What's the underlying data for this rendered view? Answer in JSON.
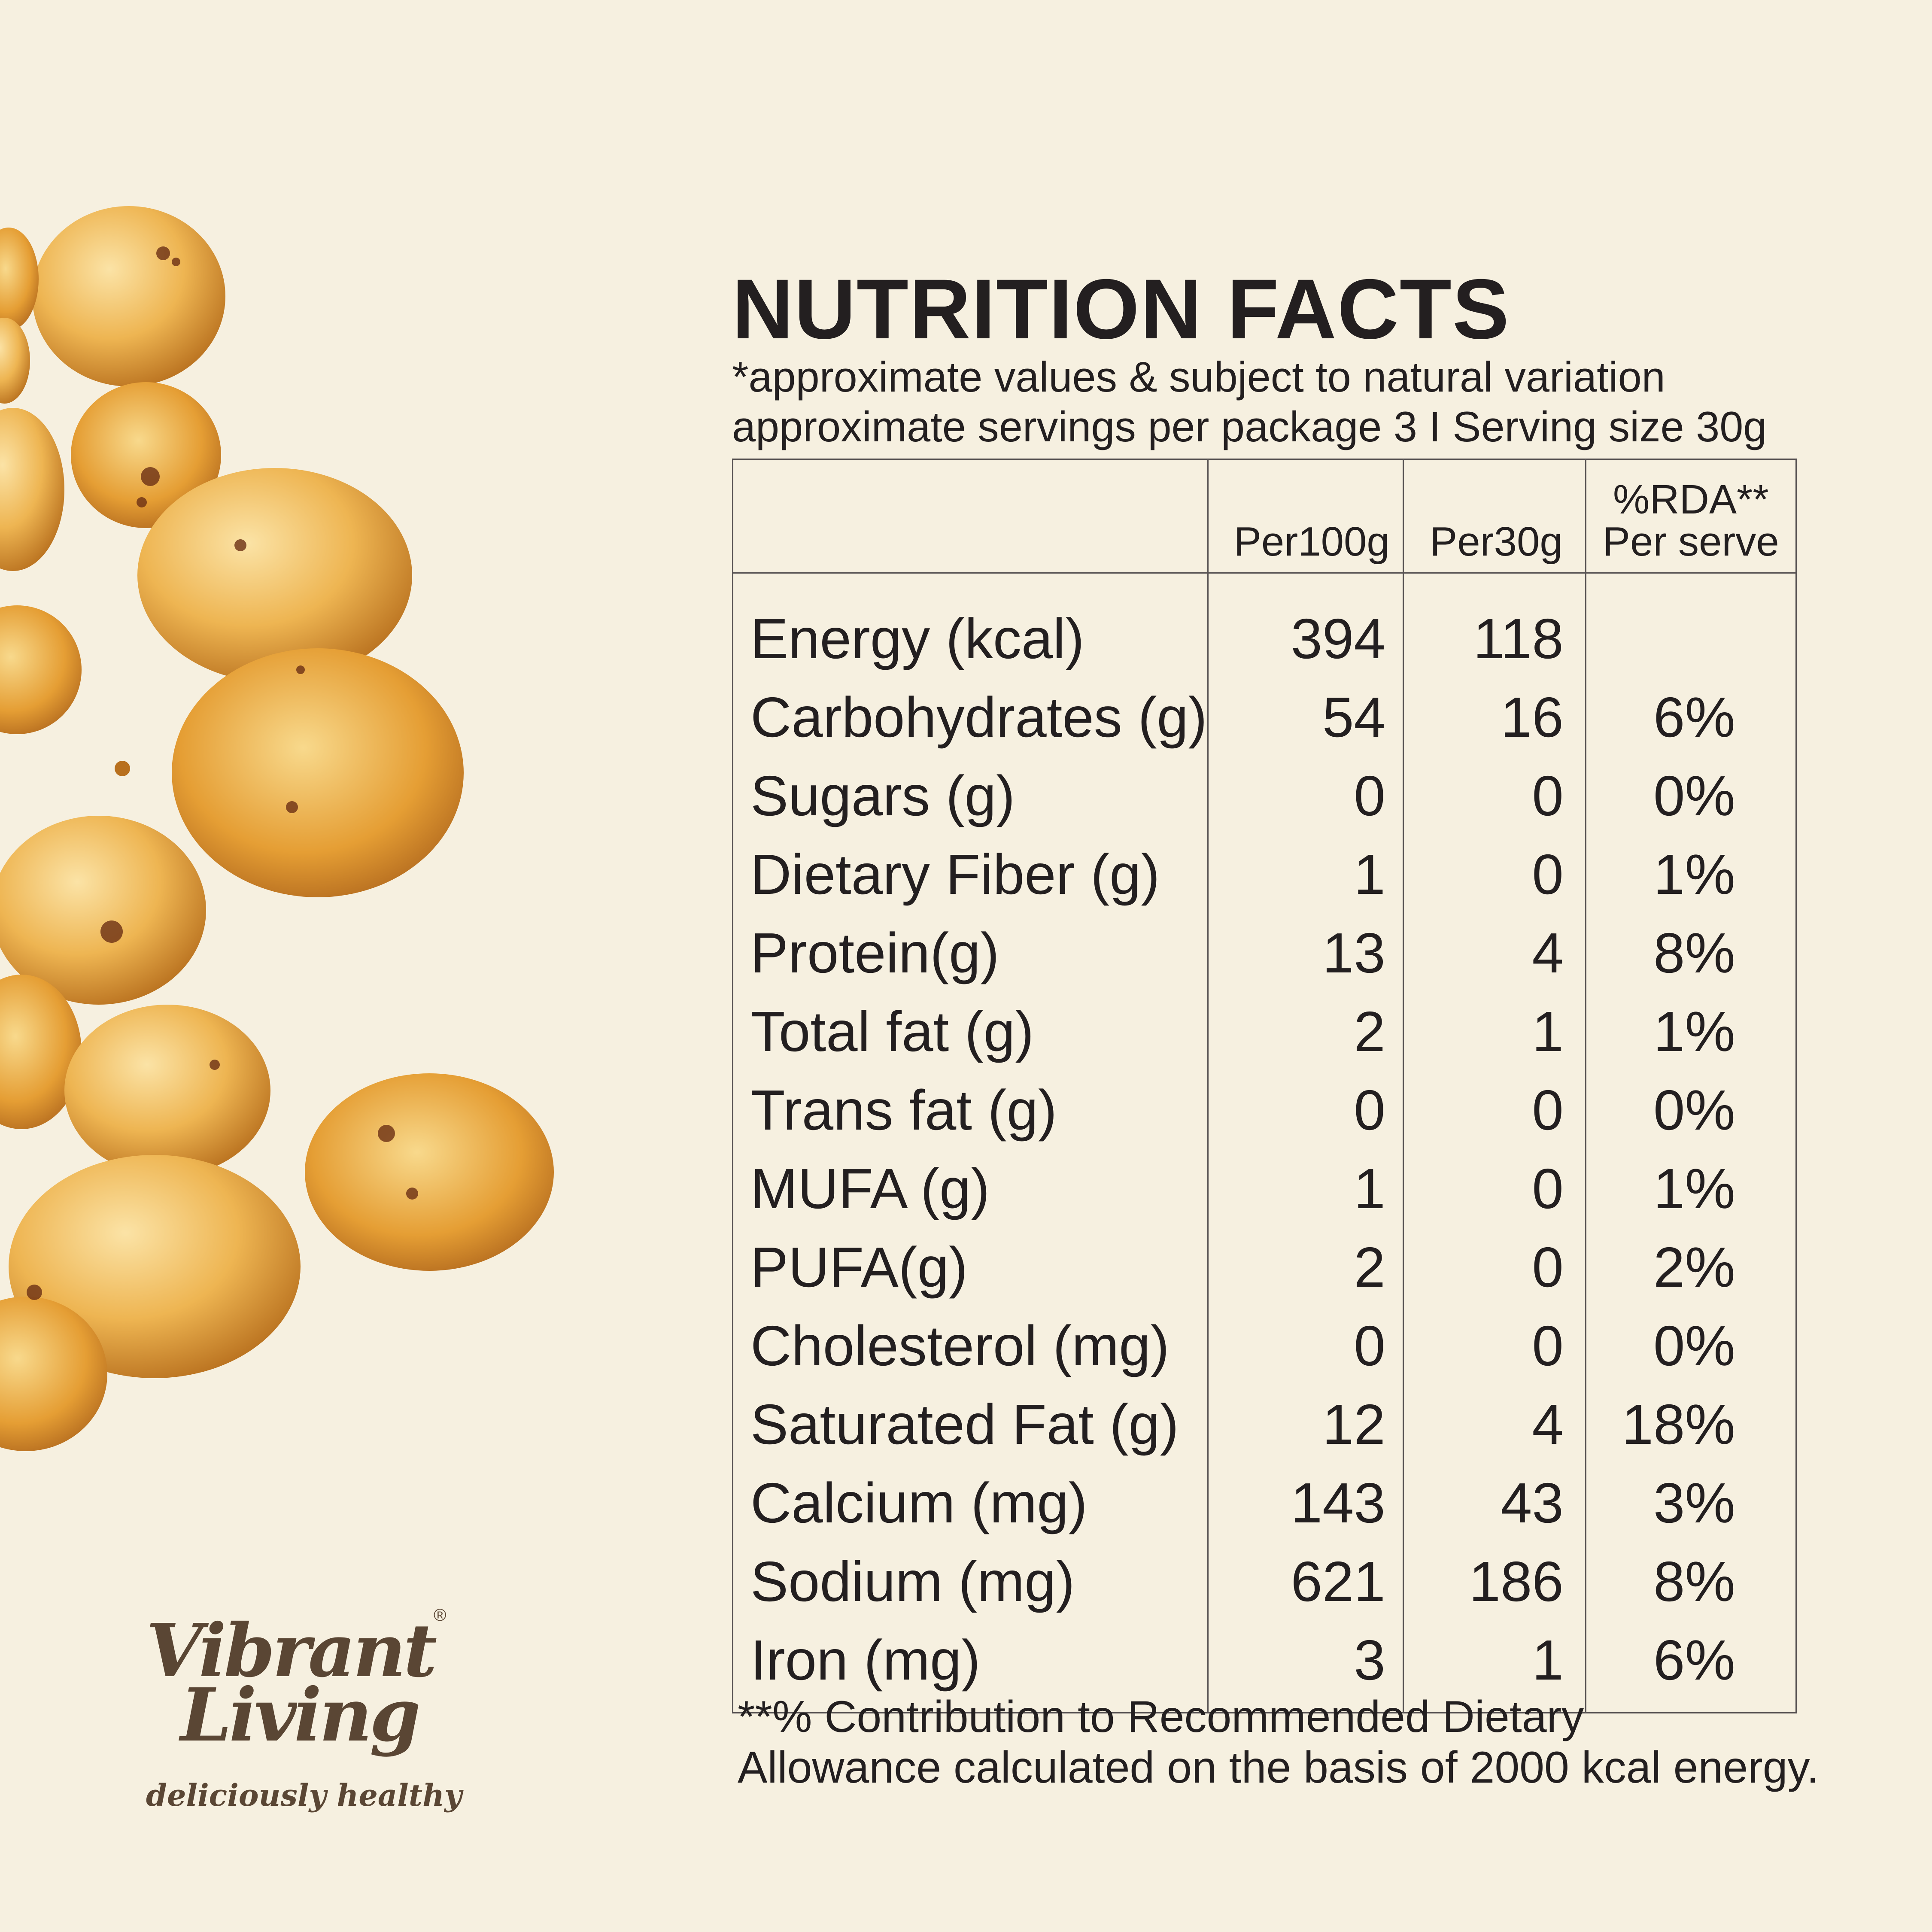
{
  "panel": {
    "title": "NUTRITION FACTS",
    "note": "*approximate values & subject to natural variation",
    "servings": "approximate servings per package 3 I Serving size 30g"
  },
  "table": {
    "headers": {
      "per100": "Per100g",
      "per30": "Per30g",
      "rda_line1": "%RDA**",
      "rda_line2": "Per serve"
    },
    "rows": [
      {
        "label": "Energy (kcal)",
        "per100": "394",
        "per30": "118",
        "rda": ""
      },
      {
        "label": "Carbohydrates (g)",
        "per100": "54",
        "per30": "16",
        "rda": "6%"
      },
      {
        "label": "Sugars (g)",
        "per100": "0",
        "per30": "0",
        "rda": "0%"
      },
      {
        "label": "Dietary Fiber (g)",
        "per100": "1",
        "per30": "0",
        "rda": "1%"
      },
      {
        "label": "Protein(g)",
        "per100": "13",
        "per30": "4",
        "rda": "8%"
      },
      {
        "label": "Total fat (g)",
        "per100": "2",
        "per30": "1",
        "rda": "1%"
      },
      {
        "label": "Trans fat (g)",
        "per100": "0",
        "per30": "0",
        "rda": "0%"
      },
      {
        "label": "MUFA (g)",
        "per100": "1",
        "per30": "0",
        "rda": "1%"
      },
      {
        "label": "PUFA(g)",
        "per100": "2",
        "per30": "0",
        "rda": "2%"
      },
      {
        "label": "Cholesterol (mg)",
        "per100": "0",
        "per30": "0",
        "rda": "0%"
      },
      {
        "label": "Saturated Fat (g)",
        "per100": "12",
        "per30": "4",
        "rda": "18%"
      },
      {
        "label": "Calcium (mg)",
        "per100": "143",
        "per30": "43",
        "rda": "3%"
      },
      {
        "label": "Sodium (mg)",
        "per100": "621",
        "per30": "186",
        "rda": "8%"
      },
      {
        "label": "Iron (mg)",
        "per100": "3",
        "per30": "1",
        "rda": "6%"
      }
    ]
  },
  "footnote": {
    "line1": "**% Contribution to Recommended Dietary",
    "line2": "Allowance calculated on the basis of 2000 kcal energy."
  },
  "brand": {
    "name_line1": "Vibrant",
    "name_line2": "Living",
    "registered": "®",
    "tagline": "deliciously healthy"
  },
  "colors": {
    "background": "#f6f0e0",
    "text": "#231f20",
    "brand": "#5a4634",
    "snack": "#e9a93c"
  },
  "image": {
    "subject": "roasted-makhana-icon"
  }
}
